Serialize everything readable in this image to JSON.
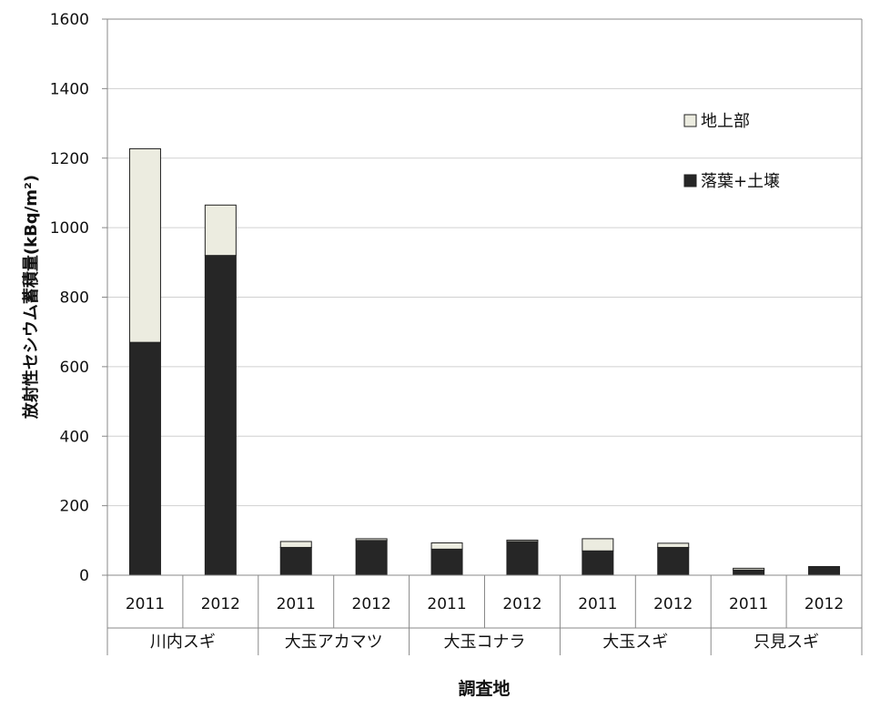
{
  "chart_data": {
    "type": "bar",
    "stacked": true,
    "title": "",
    "xlabel": "調査地",
    "ylabel": "放射性セシウム蓄積量(kBq/m²)",
    "ylim": [
      0,
      1600
    ],
    "yticks": [
      0,
      200,
      400,
      600,
      800,
      1000,
      1200,
      1400,
      1600
    ],
    "grid": true,
    "legend_position": "top-right",
    "categories": [
      "2011",
      "2012",
      "2011",
      "2012",
      "2011",
      "2012",
      "2011",
      "2012",
      "2011",
      "2012"
    ],
    "groups": [
      "川内スギ",
      "大玉アカマツ",
      "大玉コナラ",
      "大玉スギ",
      "只見スギ"
    ],
    "series": [
      {
        "name": "落葉+土壌",
        "color": "#262626",
        "values": [
          670,
          920,
          80,
          100,
          75,
          97,
          70,
          80,
          15,
          25
        ]
      },
      {
        "name": "地上部",
        "color": "#ecece0",
        "values": [
          557,
          145,
          17,
          5,
          18,
          4,
          35,
          12,
          5,
          0
        ]
      }
    ]
  }
}
